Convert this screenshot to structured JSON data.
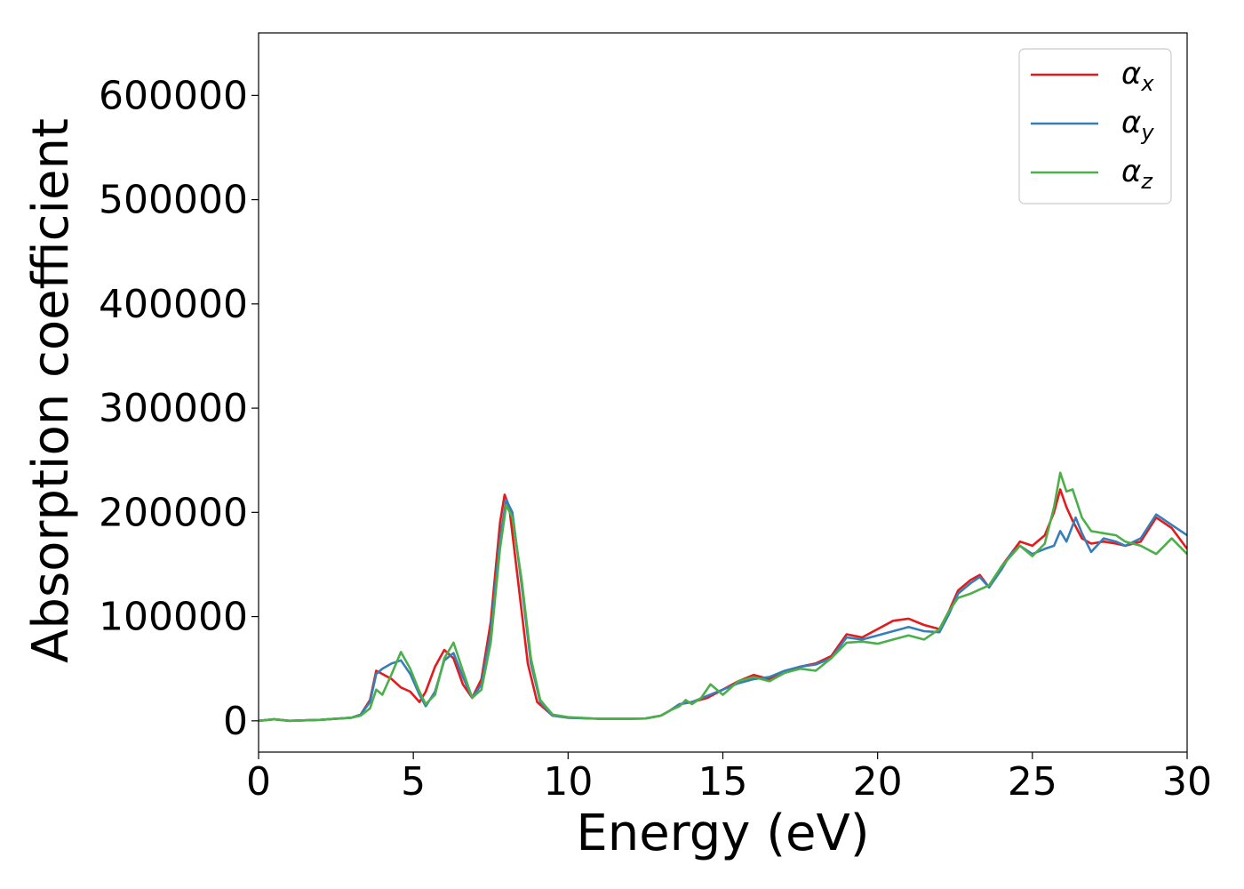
{
  "chart_data": {
    "type": "line",
    "title": "",
    "xlabel": "Energy (eV)",
    "ylabel": "Absorption coefficient",
    "xlim": [
      0,
      30
    ],
    "ylim": [
      -30000,
      660000
    ],
    "xticks": [
      0,
      5,
      10,
      15,
      20,
      25,
      30
    ],
    "xtick_labels": [
      "0",
      "5",
      "10",
      "15",
      "20",
      "25",
      "30"
    ],
    "yticks": [
      0,
      100000,
      200000,
      300000,
      400000,
      500000,
      600000
    ],
    "ytick_labels": [
      "0",
      "100000",
      "200000",
      "300000",
      "400000",
      "500000",
      "600000"
    ],
    "grid": false,
    "legend_position": "top-right",
    "series": [
      {
        "name": "α",
        "subscript": "x",
        "color": "#e41a1c",
        "x": [
          0,
          0.5,
          1,
          2,
          3,
          3.3,
          3.6,
          3.8,
          4.0,
          4.3,
          4.6,
          4.9,
          5.2,
          5.4,
          5.7,
          6.0,
          6.3,
          6.6,
          6.9,
          7.2,
          7.5,
          7.8,
          7.95,
          8.1,
          8.4,
          8.7,
          9.0,
          9.5,
          10,
          11,
          12,
          12.5,
          13,
          13.3,
          13.6,
          14,
          14.5,
          15,
          15.5,
          16,
          16.5,
          17,
          17.5,
          18,
          18.5,
          19,
          19.5,
          20,
          20.5,
          21,
          21.5,
          22,
          22.3,
          22.6,
          23,
          23.3,
          23.6,
          24,
          24.3,
          24.6,
          25,
          25.4,
          25.7,
          25.9,
          26.1,
          26.3,
          26.6,
          26.9,
          27.3,
          27.7,
          28,
          28.5,
          29,
          29.5,
          30
        ],
        "y": [
          0,
          1500,
          0,
          1000,
          3000,
          6000,
          20000,
          48000,
          45000,
          40000,
          32000,
          28000,
          18000,
          28000,
          52000,
          68000,
          60000,
          35000,
          22000,
          40000,
          95000,
          190000,
          217000,
          205000,
          130000,
          55000,
          18000,
          5000,
          3000,
          2000,
          2000,
          2200,
          5000,
          10000,
          16000,
          18000,
          22000,
          30000,
          38000,
          44000,
          40000,
          47000,
          52000,
          55000,
          62000,
          83000,
          80000,
          88000,
          96000,
          98000,
          92000,
          88000,
          105000,
          125000,
          135000,
          140000,
          128000,
          148000,
          160000,
          172000,
          168000,
          178000,
          200000,
          222000,
          205000,
          192000,
          175000,
          170000,
          172000,
          170000,
          168000,
          172000,
          195000,
          185000,
          165000
        ]
      },
      {
        "name": "α",
        "subscript": "y",
        "color": "#377eb8",
        "x": [
          0,
          0.5,
          1,
          2,
          3,
          3.3,
          3.6,
          3.8,
          4.0,
          4.3,
          4.6,
          4.9,
          5.2,
          5.4,
          5.7,
          6.0,
          6.3,
          6.6,
          6.9,
          7.2,
          7.5,
          7.8,
          8.0,
          8.2,
          8.5,
          8.8,
          9.1,
          9.5,
          10,
          11,
          12,
          12.5,
          13,
          13.3,
          13.6,
          14,
          14.5,
          15,
          15.5,
          16,
          16.5,
          17,
          17.5,
          18,
          18.5,
          19,
          19.5,
          20,
          20.5,
          21,
          21.5,
          22,
          22.3,
          22.6,
          23,
          23.3,
          23.6,
          24,
          24.3,
          24.6,
          25,
          25.4,
          25.7,
          25.9,
          26.1,
          26.4,
          26.6,
          26.9,
          27.3,
          27.7,
          28,
          28.5,
          29,
          29.5,
          30
        ],
        "y": [
          0,
          1500,
          0,
          1000,
          3000,
          6000,
          18000,
          45000,
          50000,
          55000,
          58000,
          45000,
          25000,
          14000,
          28000,
          58000,
          65000,
          42000,
          22000,
          35000,
          85000,
          175000,
          212000,
          200000,
          130000,
          55000,
          18000,
          5000,
          3000,
          2000,
          2000,
          2200,
          5000,
          10000,
          16000,
          18000,
          24000,
          30000,
          36000,
          40000,
          42000,
          48000,
          52000,
          54000,
          60000,
          80000,
          78000,
          82000,
          86000,
          90000,
          86000,
          85000,
          102000,
          122000,
          132000,
          138000,
          128000,
          145000,
          160000,
          168000,
          160000,
          165000,
          168000,
          182000,
          172000,
          195000,
          180000,
          162000,
          175000,
          172000,
          168000,
          175000,
          198000,
          188000,
          178000
        ]
      },
      {
        "name": "α",
        "subscript": "z",
        "color": "#4daf4a",
        "x": [
          0,
          0.5,
          1,
          2,
          3,
          3.3,
          3.6,
          3.8,
          4.0,
          4.3,
          4.6,
          4.9,
          5.2,
          5.4,
          5.7,
          6.0,
          6.3,
          6.6,
          6.9,
          7.2,
          7.5,
          7.8,
          8.0,
          8.2,
          8.5,
          8.8,
          9.1,
          9.5,
          10,
          11,
          12,
          12.5,
          13,
          13.3,
          13.6,
          13.8,
          14,
          14.3,
          14.6,
          15,
          15.5,
          16,
          16.5,
          17,
          17.5,
          18,
          18.5,
          19,
          19.5,
          20,
          20.5,
          21,
          21.5,
          22,
          22.3,
          22.6,
          23,
          23.3,
          23.6,
          24,
          24.3,
          24.6,
          25,
          25.4,
          25.7,
          25.9,
          26.1,
          26.3,
          26.6,
          26.9,
          27.3,
          27.7,
          28,
          28.5,
          29,
          29.5,
          30
        ],
        "y": [
          0,
          1500,
          0,
          1000,
          3000,
          5000,
          12000,
          30000,
          25000,
          45000,
          66000,
          50000,
          28000,
          16000,
          25000,
          60000,
          75000,
          48000,
          22000,
          30000,
          75000,
          165000,
          207000,
          195000,
          135000,
          60000,
          20000,
          6000,
          3500,
          2000,
          2000,
          2200,
          5000,
          10000,
          14000,
          20000,
          16000,
          22000,
          35000,
          25000,
          38000,
          42000,
          38000,
          46000,
          50000,
          48000,
          60000,
          75000,
          76000,
          74000,
          78000,
          82000,
          78000,
          88000,
          105000,
          118000,
          122000,
          126000,
          130000,
          148000,
          158000,
          168000,
          158000,
          170000,
          205000,
          238000,
          220000,
          222000,
          195000,
          182000,
          180000,
          178000,
          172000,
          168000,
          160000,
          175000,
          160000
        ]
      }
    ]
  }
}
